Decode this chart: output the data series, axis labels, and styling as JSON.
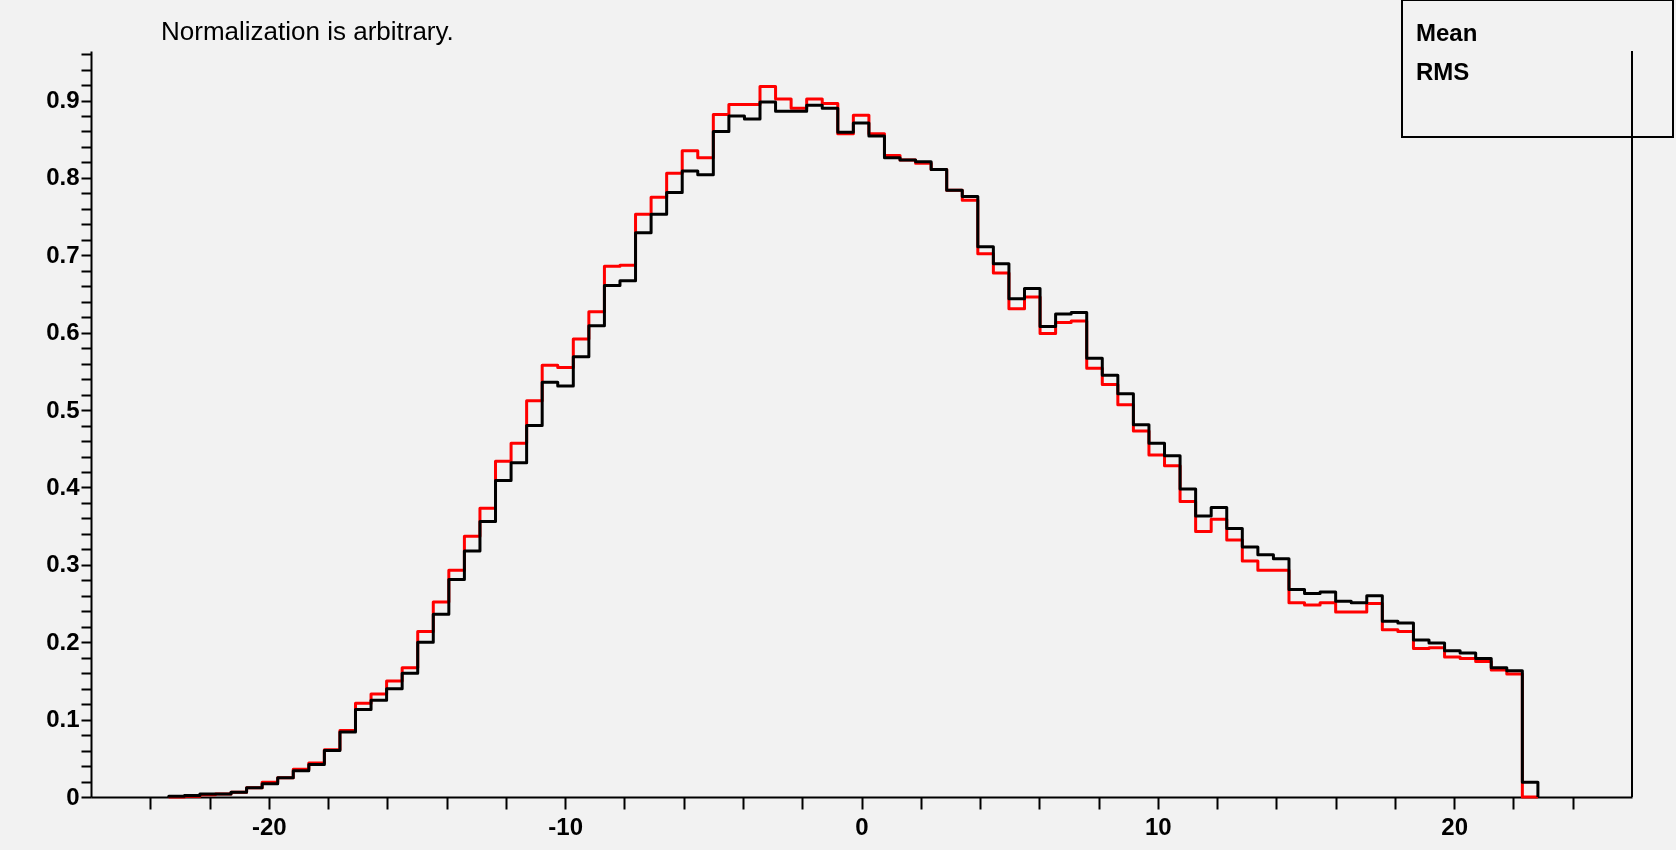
{
  "chart_data": {
    "type": "histogram",
    "title": "Normalization is arbitrary.",
    "annotations": [
      "Mean",
      "RMS"
    ],
    "bins": [
      -23.375,
      -22.85,
      -22.325,
      -21.8,
      -21.275,
      -20.75,
      -20.225,
      -19.7,
      -19.175,
      -18.65,
      -18.125,
      -17.6,
      -17.075,
      -16.55,
      -16.025,
      -15.5,
      -14.975,
      -14.45,
      -13.925,
      -13.4,
      -12.875,
      -12.35,
      -11.825,
      -11.3,
      -10.775,
      -10.25,
      -9.725,
      -9.2,
      -8.675,
      -8.15,
      -7.625,
      -7.1,
      -6.575,
      -6.05,
      -5.525,
      -5,
      -4.475,
      -3.95,
      -3.425,
      -2.9,
      -2.375,
      -1.85,
      -1.325,
      -0.8,
      -0.275,
      0.25,
      0.775,
      1.3,
      1.825,
      2.35,
      2.875,
      3.4,
      3.925,
      4.45,
      4.975,
      5.5,
      6.025,
      6.55,
      7.075,
      7.6,
      8.125,
      8.65,
      9.175,
      9.7,
      10.225,
      10.75,
      11.275,
      11.8,
      12.325,
      12.85,
      13.375,
      13.9,
      14.425,
      14.95,
      15.475,
      16,
      16.525,
      17.05,
      17.575,
      18.1,
      18.625,
      19.15,
      19.675,
      20.2,
      20.725,
      21.25,
      21.775,
      22.3,
      22.825
    ],
    "series": [
      {
        "color": "#ff0000",
        "values": [
          0,
          0.001,
          0.003,
          0.004,
          0.006,
          0.012,
          0.019,
          0.025,
          0.036,
          0.044,
          0.061,
          0.086,
          0.121,
          0.133,
          0.15,
          0.167,
          0.214,
          0.252,
          0.293,
          0.337,
          0.373,
          0.434,
          0.457,
          0.512,
          0.558,
          0.555,
          0.592,
          0.627,
          0.686,
          0.687,
          0.753,
          0.775,
          0.806,
          0.835,
          0.826,
          0.882,
          0.895,
          0.895,
          0.918,
          0.902,
          0.89,
          0.902,
          0.896,
          0.857,
          0.881,
          0.857,
          0.829,
          0.823,
          0.819,
          0.811,
          0.784,
          0.771,
          0.702,
          0.677,
          0.631,
          0.646,
          0.599,
          0.613,
          0.615,
          0.554,
          0.533,
          0.507,
          0.473,
          0.442,
          0.428,
          0.382,
          0.343,
          0.359,
          0.332,
          0.305,
          0.293,
          0.293,
          0.251,
          0.248,
          0.251,
          0.239,
          0.239,
          0.25,
          0.216,
          0.214,
          0.192,
          0.193,
          0.181,
          0.179,
          0.175,
          0.164,
          0.159,
          0
        ]
      },
      {
        "color": "#000000",
        "values": [
          0.001,
          0.002,
          0.004,
          0.004,
          0.006,
          0.012,
          0.017,
          0.025,
          0.034,
          0.042,
          0.06,
          0.084,
          0.113,
          0.125,
          0.14,
          0.16,
          0.2,
          0.236,
          0.281,
          0.318,
          0.356,
          0.409,
          0.432,
          0.48,
          0.536,
          0.531,
          0.569,
          0.609,
          0.661,
          0.667,
          0.729,
          0.753,
          0.781,
          0.809,
          0.804,
          0.86,
          0.88,
          0.876,
          0.898,
          0.886,
          0.886,
          0.894,
          0.89,
          0.859,
          0.871,
          0.854,
          0.826,
          0.823,
          0.821,
          0.811,
          0.784,
          0.776,
          0.711,
          0.689,
          0.644,
          0.657,
          0.608,
          0.624,
          0.626,
          0.567,
          0.545,
          0.521,
          0.481,
          0.457,
          0.441,
          0.398,
          0.363,
          0.374,
          0.347,
          0.323,
          0.313,
          0.308,
          0.268,
          0.263,
          0.265,
          0.253,
          0.251,
          0.26,
          0.227,
          0.225,
          0.203,
          0.199,
          0.189,
          0.186,
          0.179,
          0.167,
          0.163,
          0.019
        ]
      }
    ],
    "xlim": [
      -26,
      26
    ],
    "xticks": [
      {
        "value": -24,
        "label": null
      },
      {
        "value": -22,
        "label": null
      },
      -20,
      {
        "value": -18,
        "label": null
      },
      {
        "value": -16,
        "label": null
      },
      {
        "value": -14,
        "label": null
      },
      {
        "value": -12,
        "label": null
      },
      -10,
      {
        "value": -8,
        "label": null
      },
      {
        "value": -6,
        "label": null
      },
      {
        "value": -4,
        "label": null
      },
      {
        "value": -2,
        "label": null
      },
      0,
      {
        "value": 2,
        "label": null
      },
      {
        "value": 4,
        "label": null
      },
      {
        "value": 6,
        "label": null
      },
      {
        "value": 8,
        "label": null
      },
      10,
      {
        "value": 12,
        "label": null
      },
      {
        "value": 14,
        "label": null
      },
      {
        "value": 16,
        "label": null
      },
      {
        "value": 18,
        "label": null
      },
      20,
      {
        "value": 22,
        "label": null
      },
      {
        "value": 24,
        "label": null
      }
    ],
    "ylim": [
      0,
      0.964
    ],
    "yticks": [
      0,
      {
        "value": 0.02,
        "label": null
      },
      {
        "value": 0.04,
        "label": null
      },
      {
        "value": 0.06,
        "label": null
      },
      {
        "value": 0.08,
        "label": null
      },
      0.1,
      {
        "value": 0.12,
        "label": null
      },
      {
        "value": 0.14,
        "label": null
      },
      {
        "value": 0.16,
        "label": null
      },
      {
        "value": 0.18,
        "label": null
      },
      0.2,
      {
        "value": 0.22,
        "label": null
      },
      {
        "value": 0.24,
        "label": null
      },
      {
        "value": 0.26,
        "label": null
      },
      {
        "value": 0.28,
        "label": null
      },
      0.3,
      {
        "value": 0.32,
        "label": null
      },
      {
        "value": 0.34,
        "label": null
      },
      {
        "value": 0.36,
        "label": null
      },
      {
        "value": 0.38,
        "label": null
      },
      0.4,
      {
        "value": 0.42,
        "label": null
      },
      {
        "value": 0.44,
        "label": null
      },
      {
        "value": 0.46,
        "label": null
      },
      {
        "value": 0.48,
        "label": null
      },
      0.5,
      {
        "value": 0.52,
        "label": null
      },
      {
        "value": 0.54,
        "label": null
      },
      {
        "value": 0.56,
        "label": null
      },
      {
        "value": 0.58,
        "label": null
      },
      0.6,
      {
        "value": 0.62,
        "label": null
      },
      {
        "value": 0.64,
        "label": null
      },
      {
        "value": 0.66,
        "label": null
      },
      {
        "value": 0.68,
        "label": null
      },
      0.7,
      {
        "value": 0.72,
        "label": null
      },
      {
        "value": 0.74,
        "label": null
      },
      {
        "value": 0.76,
        "label": null
      },
      {
        "value": 0.78,
        "label": null
      },
      0.8,
      {
        "value": 0.82,
        "label": null
      },
      {
        "value": 0.84,
        "label": null
      },
      {
        "value": 0.86,
        "label": null
      },
      {
        "value": 0.88,
        "label": null
      },
      0.9,
      {
        "value": 0.92,
        "label": null
      },
      {
        "value": 0.94,
        "label": null
      },
      {
        "value": 0.96,
        "label": null
      }
    ],
    "grid": false,
    "legend": false
  }
}
